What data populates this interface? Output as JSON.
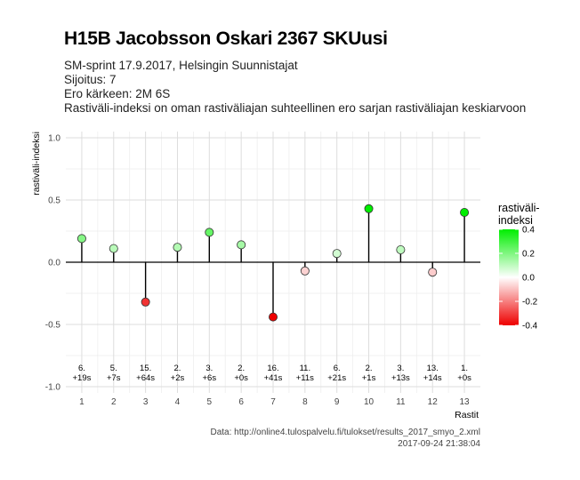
{
  "header": {
    "title": "H15B Jacobsson Oskari 2367 SKUusi",
    "subtitle_lines": [
      "SM-sprint 17.9.2017, Helsingin Suunnistajat",
      "Sijoitus: 7",
      "Ero kärkeen: 2M 6S",
      "Rastiväli-indeksi on oman rastiväliajan suhteellinen ero sarjan rastiväliajan keskiarvoon"
    ]
  },
  "footer": {
    "source": "Data: http://online4.tulospalvelu.fi/tulokset/results_2017_smyo_2.xml",
    "timestamp": "2017-09-24 21:38:04"
  },
  "chart_data": {
    "type": "lollipop",
    "xlabel": "Rastit",
    "ylabel": "rastiväli-indeksi",
    "ylim": [
      -1.05,
      1.05
    ],
    "xlim": [
      0.5,
      13.5
    ],
    "yticks": [
      -1.0,
      -0.5,
      0.0,
      0.5,
      1.0
    ],
    "ytick_labels": [
      "-1.0",
      "-0.5",
      "0.0",
      "0.5",
      "1.0"
    ],
    "x": [
      1,
      2,
      3,
      4,
      5,
      6,
      7,
      8,
      9,
      10,
      11,
      12,
      13
    ],
    "values": [
      0.19,
      0.11,
      -0.32,
      0.12,
      0.24,
      0.14,
      -0.44,
      -0.07,
      0.07,
      0.43,
      0.1,
      -0.08,
      0.4
    ],
    "annotations": [
      [
        "6.",
        "+19s"
      ],
      [
        "5.",
        "+7s"
      ],
      [
        "15.",
        "+64s"
      ],
      [
        "2.",
        "+2s"
      ],
      [
        "3.",
        "+6s"
      ],
      [
        "2.",
        "+0s"
      ],
      [
        "16.",
        "+41s"
      ],
      [
        "11.",
        "+11s"
      ],
      [
        "6.",
        "+21s"
      ],
      [
        "2.",
        "+1s"
      ],
      [
        "3.",
        "+13s"
      ],
      [
        "13.",
        "+14s"
      ],
      [
        "1.",
        "+0s"
      ]
    ],
    "annotation_y": -0.9,
    "legend": {
      "title_lines": [
        "rastiväli-",
        "indeksi"
      ],
      "ticks": [
        0.4,
        0.2,
        0.0,
        -0.2,
        -0.4
      ],
      "tick_labels": [
        "0.4",
        "0.2",
        "0.0",
        "-0.2",
        "-0.4"
      ],
      "range": [
        -0.4,
        0.4
      ],
      "placement": "right"
    },
    "colors": {
      "high": "#00ee00",
      "mid": "#ffffff",
      "low": "#ee0000",
      "grid_major": "#dddddd",
      "grid_minor": "#eeeeee",
      "stem": "#000000"
    }
  }
}
